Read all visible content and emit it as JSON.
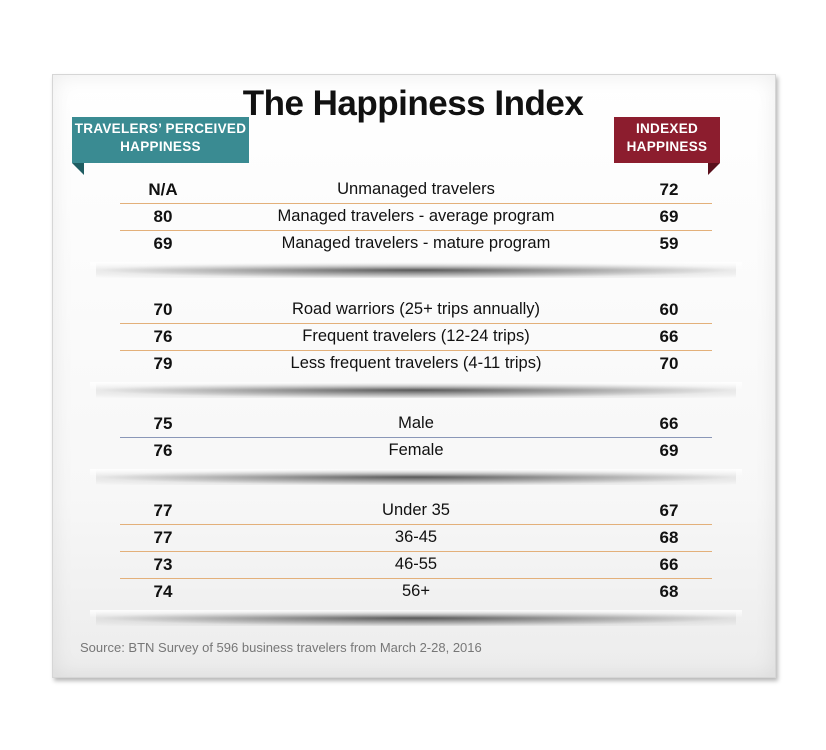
{
  "chart_data": {
    "type": "table",
    "title": "The Happiness Index",
    "columns": {
      "left": "TRAVELERS’ PERCEIVED HAPPINESS",
      "right": "INDEXED HAPPINESS"
    },
    "groups": [
      [
        {
          "perceived": "N/A",
          "label": "Unmanaged travelers",
          "indexed": "72"
        },
        {
          "perceived": "80",
          "label": "Managed travelers - average program",
          "indexed": "69"
        },
        {
          "perceived": "69",
          "label": "Managed travelers - mature program",
          "indexed": "59"
        }
      ],
      [
        {
          "perceived": "70",
          "label": "Road warriors (25+ trips annually)",
          "indexed": "60"
        },
        {
          "perceived": "76",
          "label": "Frequent travelers (12-24 trips)",
          "indexed": "66"
        },
        {
          "perceived": "79",
          "label": "Less frequent travelers (4-11 trips)",
          "indexed": "70"
        }
      ],
      [
        {
          "perceived": "75",
          "label": "Male",
          "indexed": "66"
        },
        {
          "perceived": "76",
          "label": "Female",
          "indexed": "69"
        }
      ],
      [
        {
          "perceived": "77",
          "label": "Under 35",
          "indexed": "67"
        },
        {
          "perceived": "77",
          "label": "36-45",
          "indexed": "68"
        },
        {
          "perceived": "73",
          "label": "46-55",
          "indexed": "66"
        },
        {
          "perceived": "74",
          "label": "56+",
          "indexed": "68"
        }
      ]
    ],
    "source": "Source: BTN Survey of 596 business travelers from March 2-28, 2016"
  },
  "header": {
    "left_line1": "TRAVELERS’ PERCEIVED",
    "left_line2": "HAPPINESS",
    "right_line1": "INDEXED",
    "right_line2": "HAPPINESS",
    "left_color": "#3a8b92",
    "right_color": "#8c1d2e"
  }
}
